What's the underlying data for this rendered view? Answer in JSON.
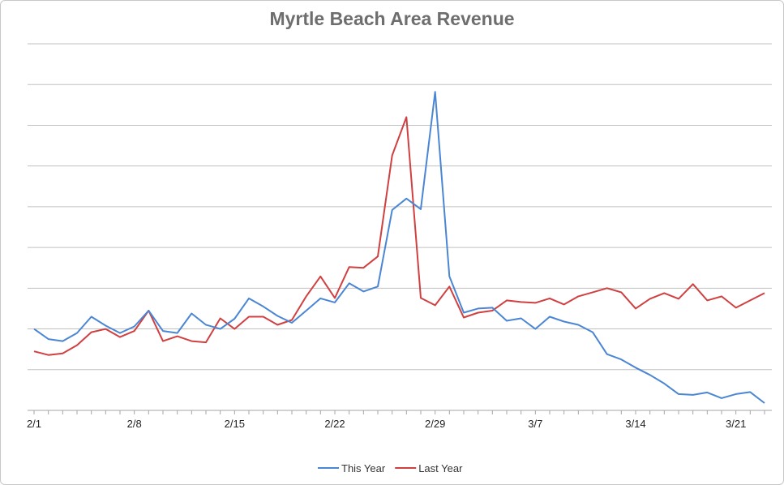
{
  "chart_data": {
    "type": "line",
    "title": "Myrtle Beach Area Revenue",
    "xlabel": "",
    "ylabel": "",
    "x": [
      "2/1",
      "2/2",
      "2/3",
      "2/4",
      "2/5",
      "2/6",
      "2/7",
      "2/8",
      "2/9",
      "2/10",
      "2/11",
      "2/12",
      "2/13",
      "2/14",
      "2/15",
      "2/16",
      "2/17",
      "2/18",
      "2/19",
      "2/20",
      "2/21",
      "2/22",
      "2/23",
      "2/24",
      "2/25",
      "2/26",
      "2/27",
      "2/28",
      "2/29",
      "3/1",
      "3/2",
      "3/3",
      "3/4",
      "3/5",
      "3/6",
      "3/7",
      "3/8",
      "3/9",
      "3/10",
      "3/11",
      "3/12",
      "3/13",
      "3/14",
      "3/15",
      "3/16",
      "3/17",
      "3/18",
      "3/19",
      "3/20",
      "3/21",
      "3/22",
      "3/23"
    ],
    "x_tick_labels": [
      "2/1",
      "2/8",
      "2/15",
      "2/22",
      "2/29",
      "3/7",
      "3/14",
      "3/21"
    ],
    "ylim": [
      0,
      9
    ],
    "y_gridlines": 9,
    "y_tick_labels_shown": false,
    "grid": true,
    "legend_position": "bottom",
    "series": [
      {
        "name": "This Year",
        "color": "#4a86d4",
        "values": [
          2.0,
          1.75,
          1.7,
          1.9,
          2.3,
          2.08,
          1.9,
          2.06,
          2.45,
          1.95,
          1.9,
          2.38,
          2.1,
          2.0,
          2.25,
          2.75,
          2.55,
          2.32,
          2.15,
          2.45,
          2.75,
          2.65,
          3.12,
          2.92,
          3.04,
          4.92,
          5.2,
          4.94,
          7.82,
          3.29,
          2.4,
          2.5,
          2.52,
          2.2,
          2.26,
          2.0,
          2.3,
          2.18,
          2.1,
          1.92,
          1.38,
          1.25,
          1.05,
          0.87,
          0.66,
          0.4,
          0.38,
          0.44,
          0.3,
          0.4,
          0.45,
          0.18
        ]
      },
      {
        "name": "Last Year",
        "color": "#d04040",
        "values": [
          1.45,
          1.36,
          1.4,
          1.6,
          1.92,
          2.0,
          1.8,
          1.95,
          2.45,
          1.7,
          1.82,
          1.7,
          1.67,
          2.26,
          2.0,
          2.3,
          2.3,
          2.1,
          2.22,
          2.8,
          3.29,
          2.76,
          3.52,
          3.5,
          3.78,
          6.26,
          7.2,
          2.76,
          2.58,
          3.04,
          2.28,
          2.4,
          2.45,
          2.7,
          2.66,
          2.64,
          2.75,
          2.6,
          2.8,
          2.9,
          3.0,
          2.9,
          2.5,
          2.74,
          2.88,
          2.74,
          3.1,
          2.7,
          2.8,
          2.52,
          2.7,
          2.88
        ]
      }
    ]
  }
}
